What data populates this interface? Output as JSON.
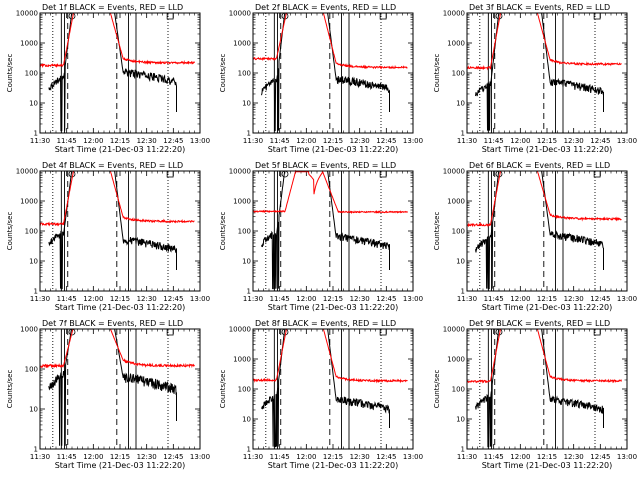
{
  "figure": {
    "background": "#ffffff",
    "colors": {
      "events": "#000000",
      "lld": "#ff0000",
      "axis": "#000000"
    }
  },
  "chart_data": [
    {
      "type": "line",
      "title": "Det 1f BLACK = Events, RED = LLD",
      "xlabel": "Start Time (21-Dec-03 11:22:20)",
      "ylabel": "Counts/sec",
      "ylim": [
        1,
        10000
      ],
      "yscale": "log",
      "xlim": [
        11.5,
        13.0
      ],
      "x_ticks": [
        "11:30",
        "11:45",
        "12:00",
        "12:15",
        "12:30",
        "12:45",
        "13:00"
      ],
      "y_ticks": [
        "1",
        "10",
        "100",
        "1000",
        "10000"
      ],
      "markers": {
        "dotted": [
          11.62,
          12.7
        ],
        "solid": [
          11.7,
          11.73,
          12.33,
          12.4
        ],
        "dashed": [
          11.76,
          12.22
        ]
      },
      "series": [
        {
          "name": "Events",
          "color": "#000000",
          "kind": "events",
          "base": 50,
          "tail": 85
        },
        {
          "name": "LLD",
          "color": "#ff0000",
          "kind": "lld",
          "base": 180,
          "tail": 200
        }
      ]
    },
    {
      "type": "line",
      "title": "Det 2f BLACK = Events, RED = LLD",
      "xlabel": "Start Time (21-Dec-03 11:22:20)",
      "ylabel": "Counts/sec",
      "ylim": [
        1,
        10000
      ],
      "yscale": "log",
      "xlim": [
        11.5,
        13.0
      ],
      "x_ticks": [
        "11:30",
        "11:45",
        "12:00",
        "12:15",
        "12:30",
        "12:45",
        "13:00"
      ],
      "y_ticks": [
        "1",
        "10",
        "100",
        "1000",
        "10000"
      ],
      "markers": {
        "dotted": [
          11.62,
          12.7
        ],
        "solid": [
          11.7,
          11.73,
          12.33,
          12.4
        ],
        "dashed": [
          11.76,
          12.22
        ]
      },
      "series": [
        {
          "name": "Events",
          "color": "#000000",
          "kind": "events",
          "base": 40,
          "tail": 50
        },
        {
          "name": "LLD",
          "color": "#ff0000",
          "kind": "lld",
          "base": 300,
          "tail": 140
        }
      ]
    },
    {
      "type": "line",
      "title": "Det 3f BLACK = Events, RED = LLD",
      "xlabel": "Start Time (21-Dec-03 11:22:20)",
      "ylabel": "Counts/sec",
      "ylim": [
        1,
        10000
      ],
      "yscale": "log",
      "xlim": [
        11.5,
        13.0
      ],
      "x_ticks": [
        "11:30",
        "11:45",
        "12:00",
        "12:15",
        "12:30",
        "12:45",
        "13:00"
      ],
      "y_ticks": [
        "1",
        "10",
        "100",
        "1000",
        "10000"
      ],
      "markers": {
        "dotted": [
          11.62,
          12.7
        ],
        "solid": [
          11.7,
          11.73,
          12.33,
          12.4
        ],
        "dashed": [
          11.76,
          12.22
        ]
      },
      "series": [
        {
          "name": "Events",
          "color": "#000000",
          "kind": "events",
          "base": 30,
          "tail": 40
        },
        {
          "name": "LLD",
          "color": "#ff0000",
          "kind": "lld",
          "base": 150,
          "tail": 180
        }
      ]
    },
    {
      "type": "line",
      "title": "Det 4f BLACK = Events, RED = LLD",
      "xlabel": "Start Time (21-Dec-03 11:22:20)",
      "ylabel": "Counts/sec",
      "ylim": [
        1,
        10000
      ],
      "yscale": "log",
      "xlim": [
        11.5,
        13.0
      ],
      "x_ticks": [
        "11:30",
        "11:45",
        "12:00",
        "12:15",
        "12:30",
        "12:45",
        "13:00"
      ],
      "y_ticks": [
        "1",
        "10",
        "100",
        "1000",
        "10000"
      ],
      "markers": {
        "dotted": [
          11.62,
          12.7
        ],
        "solid": [
          11.7,
          11.73,
          12.33,
          12.4
        ],
        "dashed": [
          11.76,
          12.22
        ]
      },
      "series": [
        {
          "name": "Events",
          "color": "#000000",
          "kind": "events",
          "base": 60,
          "tail": 40
        },
        {
          "name": "LLD",
          "color": "#ff0000",
          "kind": "lld",
          "base": 170,
          "tail": 190
        }
      ]
    },
    {
      "type": "line",
      "title": "Det 5f BLACK = Events, RED = LLD",
      "xlabel": "Start Time (21-Dec-03 11:22:20)",
      "ylabel": "Counts/sec",
      "ylim": [
        1,
        10000
      ],
      "yscale": "log",
      "xlim": [
        11.5,
        13.0
      ],
      "x_ticks": [
        "11:30",
        "11:45",
        "12:00",
        "12:15",
        "12:30",
        "12:45",
        "13:00"
      ],
      "y_ticks": [
        "1",
        "10",
        "100",
        "1000",
        "10000"
      ],
      "markers": {
        "dotted": [
          11.62,
          12.7
        ],
        "solid": [
          11.7,
          11.73,
          12.33,
          12.4
        ],
        "dashed": [
          11.76,
          12.22
        ]
      },
      "series": [
        {
          "name": "Events",
          "color": "#000000",
          "kind": "events",
          "base": 60,
          "tail": 50
        },
        {
          "name": "LLD",
          "color": "#ff0000",
          "kind": "lld5",
          "base": 450,
          "tail": 430
        }
      ]
    },
    {
      "type": "line",
      "title": "Det 6f BLACK = Events, RED = LLD",
      "xlabel": "Start Time (21-Dec-03 11:22:20)",
      "ylabel": "Counts/sec",
      "ylim": [
        1,
        10000
      ],
      "yscale": "log",
      "xlim": [
        11.5,
        13.0
      ],
      "x_ticks": [
        "11:30",
        "11:45",
        "12:00",
        "12:15",
        "12:30",
        "12:45",
        "13:00"
      ],
      "y_ticks": [
        "1",
        "10",
        "100",
        "1000",
        "10000"
      ],
      "markers": {
        "dotted": [
          11.62,
          12.7
        ],
        "solid": [
          11.7,
          11.73,
          12.33,
          12.4
        ],
        "dashed": [
          11.76,
          12.22
        ]
      },
      "series": [
        {
          "name": "Events",
          "color": "#000000",
          "kind": "events",
          "base": 40,
          "tail": 60
        },
        {
          "name": "LLD",
          "color": "#ff0000",
          "kind": "lld",
          "base": 160,
          "tail": 230
        }
      ]
    },
    {
      "type": "line",
      "title": "Det 7f BLACK = Events, RED = LLD",
      "xlabel": "Start Time (21-Dec-03 11:22:20)",
      "ylabel": "Counts/sec",
      "ylim": [
        1,
        1000
      ],
      "yscale": "log",
      "xlim": [
        11.5,
        13.0
      ],
      "x_ticks": [
        "11:30",
        "11:45",
        "12:00",
        "12:15",
        "12:30",
        "12:45",
        "13:00"
      ],
      "y_ticks": [
        "1",
        "10",
        "100",
        "1000"
      ],
      "markers": {
        "dotted": [
          11.62,
          12.7
        ],
        "solid": [
          11.7,
          11.73,
          12.33,
          12.4
        ],
        "dashed": [
          11.76,
          12.22
        ]
      },
      "series": [
        {
          "name": "Events",
          "color": "#000000",
          "kind": "events",
          "base": 50,
          "tail": 50
        },
        {
          "name": "LLD",
          "color": "#ff0000",
          "kind": "lld",
          "base": 120,
          "tail": 110
        }
      ]
    },
    {
      "type": "line",
      "title": "Det 8f BLACK = Events, RED = LLD",
      "xlabel": "Start Time (21-Dec-03 11:22:20)",
      "ylabel": "Counts/sec",
      "ylim": [
        1,
        10000
      ],
      "yscale": "log",
      "xlim": [
        11.5,
        13.0
      ],
      "x_ticks": [
        "11:30",
        "11:45",
        "12:00",
        "12:15",
        "12:30",
        "12:45",
        "13:00"
      ],
      "y_ticks": [
        "1",
        "10",
        "100",
        "1000",
        "10000"
      ],
      "markers": {
        "dotted": [
          11.62,
          12.7
        ],
        "solid": [
          11.7,
          11.73,
          12.33,
          12.4
        ],
        "dashed": [
          11.76,
          12.22
        ]
      },
      "series": [
        {
          "name": "Events",
          "color": "#000000",
          "kind": "events",
          "base": 40,
          "tail": 35
        },
        {
          "name": "LLD",
          "color": "#ff0000",
          "kind": "lld",
          "base": 200,
          "tail": 170
        }
      ]
    },
    {
      "type": "line",
      "title": "Det 9f BLACK = Events, RED = LLD",
      "xlabel": "Start Time (21-Dec-03 11:22:20)",
      "ylabel": "Counts/sec",
      "ylim": [
        1,
        10000
      ],
      "yscale": "log",
      "xlim": [
        11.5,
        13.0
      ],
      "x_ticks": [
        "11:30",
        "11:45",
        "12:00",
        "12:15",
        "12:30",
        "12:45",
        "13:00"
      ],
      "y_ticks": [
        "1",
        "10",
        "100",
        "1000",
        "10000"
      ],
      "markers": {
        "dotted": [
          11.62,
          12.7
        ],
        "solid": [
          11.7,
          11.73,
          12.33,
          12.4
        ],
        "dashed": [
          11.76,
          12.22
        ]
      },
      "series": [
        {
          "name": "Events",
          "color": "#000000",
          "kind": "events",
          "base": 40,
          "tail": 35
        },
        {
          "name": "LLD",
          "color": "#ff0000",
          "kind": "lld",
          "base": 180,
          "tail": 170
        }
      ]
    }
  ]
}
